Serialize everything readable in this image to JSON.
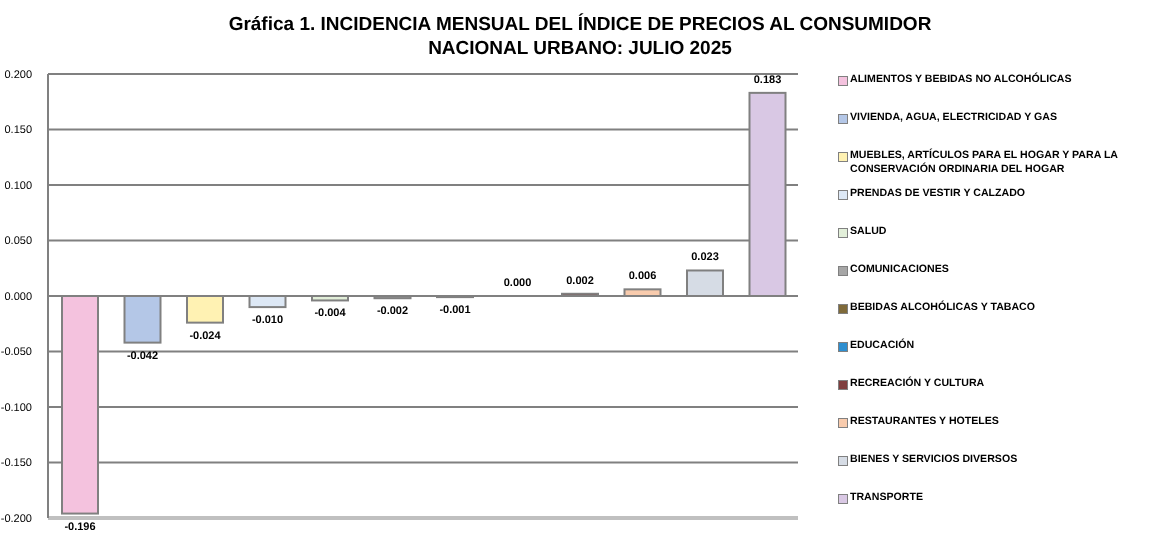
{
  "chart_data": {
    "type": "bar",
    "title": "Gráfica 1.  INCIDENCIA MENSUAL DEL ÍNDICE DE PRECIOS AL CONSUMIDOR NACIONAL URBANO: JULIO 2025",
    "categories": [
      null,
      null,
      null,
      null,
      null,
      null,
      null,
      null,
      null,
      null,
      null,
      null
    ],
    "series": [
      {
        "name": "ALIMENTOS Y BEBIDAS NO ALCOHÓLICAS",
        "color": "#f4c2de",
        "values": [
          -0.196,
          null,
          null,
          null,
          null,
          null,
          null,
          null,
          null,
          null,
          null,
          null
        ],
        "value_labels": [
          "-0.196",
          null,
          null,
          null,
          null,
          null,
          null,
          null,
          null,
          null,
          null,
          null
        ]
      },
      {
        "name": "VIVIENDA, AGUA, ELECTRICIDAD Y GAS",
        "color": "#b4c7e7",
        "values": [
          null,
          -0.042,
          null,
          null,
          null,
          null,
          null,
          null,
          null,
          null,
          null,
          null
        ],
        "value_labels": [
          null,
          "-0.042",
          null,
          null,
          null,
          null,
          null,
          null,
          null,
          null,
          null,
          null
        ]
      },
      {
        "name": "MUEBLES, ARTÍCULOS PARA EL HOGAR Y PARA LA CONSERVACIÓN ORDINARIA DEL HOGAR",
        "color": "#fff2b3",
        "values": [
          null,
          null,
          -0.024,
          null,
          null,
          null,
          null,
          null,
          null,
          null,
          null,
          null
        ],
        "value_labels": [
          null,
          null,
          "-0.024",
          null,
          null,
          null,
          null,
          null,
          null,
          null,
          null,
          null
        ]
      },
      {
        "name": "PRENDAS DE VESTIR Y CALZADO",
        "color": "#dde8f5",
        "values": [
          null,
          null,
          null,
          -0.01,
          null,
          null,
          null,
          null,
          null,
          null,
          null,
          null
        ],
        "value_labels": [
          null,
          null,
          null,
          "-0.010",
          null,
          null,
          null,
          null,
          null,
          null,
          null,
          null
        ]
      },
      {
        "name": "SALUD",
        "color": "#e2efd9",
        "values": [
          null,
          null,
          null,
          null,
          -0.004,
          null,
          null,
          null,
          null,
          null,
          null,
          null
        ],
        "value_labels": [
          null,
          null,
          null,
          null,
          "-0.004",
          null,
          null,
          null,
          null,
          null,
          null,
          null
        ]
      },
      {
        "name": "COMUNICACIONES",
        "color": "#a6a6a6",
        "values": [
          null,
          null,
          null,
          null,
          null,
          -0.002,
          null,
          null,
          null,
          null,
          null,
          null
        ],
        "value_labels": [
          null,
          null,
          null,
          null,
          null,
          "-0.002",
          null,
          null,
          null,
          null,
          null,
          null
        ]
      },
      {
        "name": "BEBIDAS ALCOHÓLICAS Y TABACO",
        "color": "#7f6a3a",
        "values": [
          null,
          null,
          null,
          null,
          null,
          null,
          -0.001,
          null,
          null,
          null,
          null,
          null
        ],
        "value_labels": [
          null,
          null,
          null,
          null,
          null,
          null,
          "-0.001",
          null,
          null,
          null,
          null,
          null
        ]
      },
      {
        "name": "EDUCACIÓN",
        "color": "#2e8fd0",
        "values": [
          null,
          null,
          null,
          null,
          null,
          null,
          null,
          0,
          null,
          null,
          null,
          null
        ],
        "value_labels": [
          null,
          null,
          null,
          null,
          null,
          null,
          null,
          "0.000",
          null,
          null,
          null,
          null
        ]
      },
      {
        "name": "RECREACIÓN Y CULTURA",
        "color": "#7f3f3f",
        "values": [
          null,
          null,
          null,
          null,
          null,
          null,
          null,
          null,
          0.002,
          null,
          null,
          null
        ],
        "value_labels": [
          null,
          null,
          null,
          null,
          null,
          null,
          null,
          null,
          "0.002",
          null,
          null,
          null
        ]
      },
      {
        "name": "RESTAURANTES Y HOTELES",
        "color": "#f8cbad",
        "values": [
          null,
          null,
          null,
          null,
          null,
          null,
          null,
          null,
          null,
          0.006,
          null,
          null
        ],
        "value_labels": [
          null,
          null,
          null,
          null,
          null,
          null,
          null,
          null,
          null,
          "0.006",
          null,
          null
        ]
      },
      {
        "name": "BIENES Y SERVICIOS DIVERSOS",
        "color": "#d6dce5",
        "values": [
          null,
          null,
          null,
          null,
          null,
          null,
          null,
          null,
          null,
          null,
          0.023,
          null
        ],
        "value_labels": [
          null,
          null,
          null,
          null,
          null,
          null,
          null,
          null,
          null,
          null,
          "0.023",
          null
        ]
      },
      {
        "name": "TRANSPORTE",
        "color": "#d9c8e4",
        "values": [
          null,
          null,
          null,
          null,
          null,
          null,
          null,
          null,
          null,
          null,
          null,
          0.183
        ],
        "value_labels": [
          null,
          null,
          null,
          null,
          null,
          null,
          null,
          null,
          null,
          null,
          null,
          "0.183"
        ]
      }
    ],
    "stacked": true,
    "ylim": [
      -0.2,
      0.2
    ],
    "yticks": [
      {
        "value": -0.2,
        "label": "-0.200"
      },
      {
        "value": -0.15,
        "label": "-0.150"
      },
      {
        "value": -0.1,
        "label": "-0.100"
      },
      {
        "value": -0.05,
        "label": "-0.050"
      },
      {
        "value": 0,
        "label": "0.000"
      },
      {
        "value": 0.05,
        "label": "0.050"
      },
      {
        "value": 0.1,
        "label": "0.100"
      },
      {
        "value": 0.15,
        "label": "0.150"
      },
      {
        "value": 0.2,
        "label": "0.200"
      }
    ],
    "grid": "y",
    "legend": "right"
  }
}
